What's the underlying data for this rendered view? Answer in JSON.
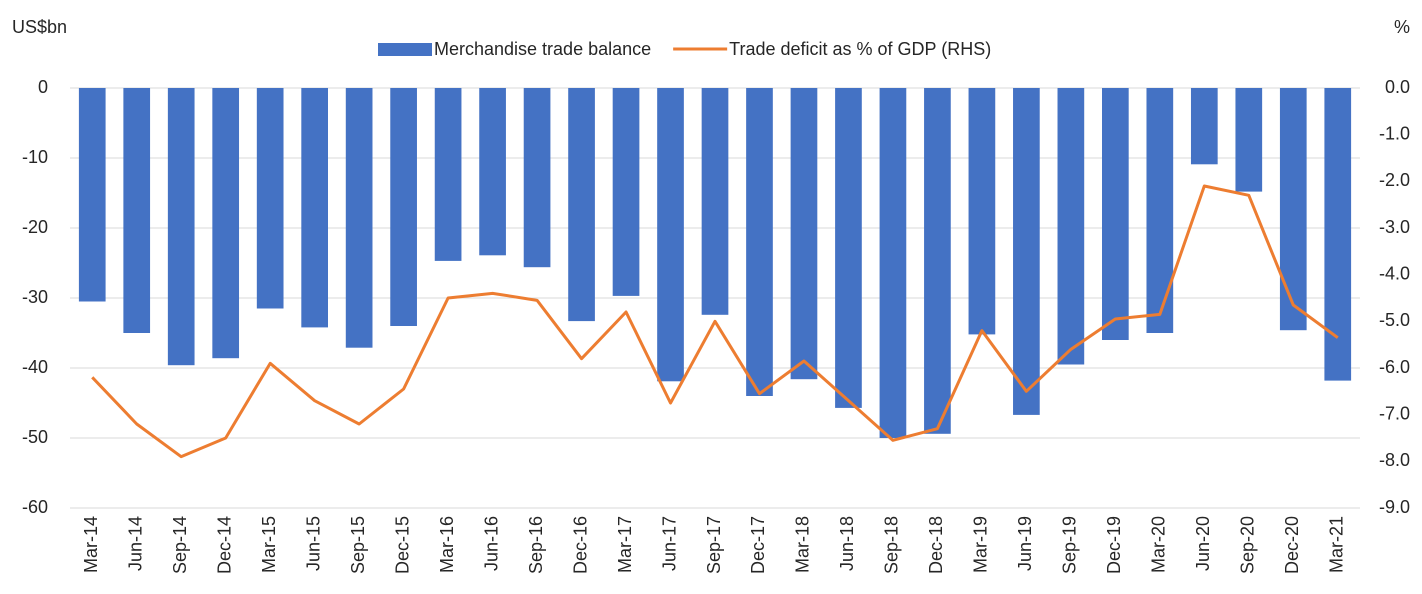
{
  "chart_data": {
    "type": "bar-line",
    "y_label": "US$bn",
    "y2_label": "%",
    "categories": [
      "Mar-14",
      "Jun-14",
      "Sep-14",
      "Dec-14",
      "Mar-15",
      "Jun-15",
      "Sep-15",
      "Dec-15",
      "Mar-16",
      "Jun-16",
      "Sep-16",
      "Dec-16",
      "Mar-17",
      "Jun-17",
      "Sep-17",
      "Dec-17",
      "Mar-18",
      "Jun-18",
      "Sep-18",
      "Dec-18",
      "Mar-19",
      "Jun-19",
      "Sep-19",
      "Dec-19",
      "Mar-20",
      "Jun-20",
      "Sep-20",
      "Dec-20",
      "Mar-21"
    ],
    "series": [
      {
        "name": "Merchandise trade balance",
        "type": "bar",
        "color": "#4472c4",
        "values": [
          -30.5,
          -35,
          -39.6,
          -38.6,
          -31.5,
          -34.2,
          -37.1,
          -34,
          -24.7,
          -23.9,
          -25.6,
          -33.3,
          -29.7,
          -41.9,
          -32.4,
          -44,
          -41.6,
          -45.7,
          -50,
          -49.4,
          -35.2,
          -46.7,
          -39.5,
          -36,
          -35,
          -10.9,
          -14.8,
          -34.6,
          -41.8
        ]
      },
      {
        "name": "Trade deficit as % of GDP (RHS)",
        "type": "line",
        "axis": "y2",
        "color": "#ed7d31",
        "values": [
          -6.2,
          -7.2,
          -7.9,
          -7.5,
          -5.9,
          -6.7,
          -7.2,
          -6.45,
          -4.5,
          -4.4,
          -4.55,
          -5.8,
          -4.8,
          -6.75,
          -5.0,
          -6.55,
          -5.85,
          -6.7,
          -7.55,
          -7.3,
          -5.2,
          -6.5,
          -5.6,
          -4.95,
          -4.85,
          -2.1,
          -2.3,
          -4.65,
          -5.35
        ]
      }
    ],
    "ylim": [
      -60,
      0
    ],
    "yticks": [
      0,
      -10,
      -20,
      -30,
      -40,
      -50,
      -60
    ],
    "y2lim": [
      -9,
      0
    ],
    "y2ticks": [
      {
        "value": 0,
        "label": "0.0"
      },
      {
        "value": -1,
        "label": "-1.0"
      },
      {
        "value": -2,
        "label": "-2.0"
      },
      {
        "value": -3,
        "label": "-3.0"
      },
      {
        "value": -4,
        "label": "-4.0"
      },
      {
        "value": -5,
        "label": "-5.0"
      },
      {
        "value": -6,
        "label": "-6.0"
      },
      {
        "value": -7,
        "label": "-7.0"
      },
      {
        "value": -8,
        "label": "-8.0"
      },
      {
        "value": -9,
        "label": "-9.0"
      }
    ],
    "grid": true,
    "legend": "top"
  }
}
